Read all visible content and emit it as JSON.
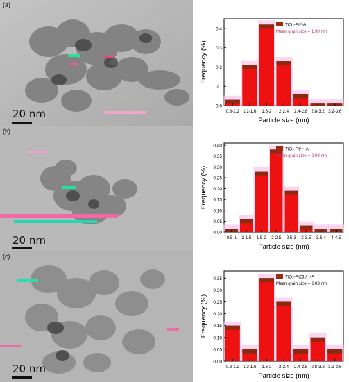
{
  "panels": [
    {
      "panel_label": "(a)",
      "scale_label": "20  nm"
    },
    {
      "panel_label": "(b)",
      "scale_label": "20  nm"
    },
    {
      "panel_label": "(c)",
      "scale_label": "20  nm"
    }
  ],
  "chart_data": [
    {
      "type": "bar",
      "legend": {
        "series": "TiO₂-Pt⁰-A",
        "mean_label": "Mean grain size = 1.90 nm",
        "placement": "top-right"
      },
      "xlabel": "Particle size (nm)",
      "ylabel": "Frequency (%)",
      "categories": [
        "0.8-1.2",
        "1.2-1.6",
        "1.6-2",
        "2-2.4",
        "2.4-2.8",
        "2.8-3.2",
        "3.2-3.6"
      ],
      "values": [
        0.03,
        0.21,
        0.42,
        0.23,
        0.06,
        0.01,
        0.01
      ],
      "ylim": [
        0,
        0.45
      ],
      "yticks": [
        0.0,
        0.1,
        0.2,
        0.3,
        0.4
      ],
      "ytick_labels": [
        "0.0",
        "0.1",
        "0.2",
        "0.3",
        "0.4"
      ]
    },
    {
      "type": "bar",
      "legend": {
        "series": "TiO₂-Pt⁴⁺-A",
        "mean_label": "Mean grain size = 2.09 nm",
        "placement": "top-right"
      },
      "xlabel": "Particle size (nm)",
      "ylabel": "Frequency (%)",
      "categories": [
        "0.5-1",
        "1-1.5",
        "1.5-2",
        "2-2.5",
        "2.5-3",
        "3-3.5",
        "3.5-4",
        "4-4.5"
      ],
      "values": [
        0.015,
        0.06,
        0.28,
        0.38,
        0.19,
        0.03,
        0.015,
        0.015
      ],
      "ylim": [
        0,
        0.41
      ],
      "yticks": [
        0.0,
        0.05,
        0.1,
        0.15,
        0.2,
        0.25,
        0.3,
        0.35,
        0.4
      ],
      "ytick_labels": [
        "0.00",
        "0.05",
        "0.10",
        "0.15",
        "0.20",
        "0.25",
        "0.30",
        "0.35",
        "0.40"
      ]
    },
    {
      "type": "bar",
      "legend": {
        "series": "TiO₂-PtCl₄²⁻-A",
        "mean_label": "Mean grain size = 2.03 nm",
        "placement": "top-right"
      },
      "xlabel": "Particle size (nm)",
      "ylabel": "Frequency (%)",
      "categories": [
        "0.8-1.2",
        "1.2-1.6",
        "1.6-2",
        "2-2.4",
        "2.4-2.8",
        "2.8-3.2",
        "3.2-3.6"
      ],
      "values": [
        0.15,
        0.05,
        0.35,
        0.25,
        0.05,
        0.1,
        0.05
      ],
      "ylim": [
        0,
        0.38
      ],
      "yticks": [
        0.0,
        0.05,
        0.1,
        0.15,
        0.2,
        0.25,
        0.3,
        0.35
      ],
      "ytick_labels": [
        "0.00",
        "0.05",
        "0.10",
        "0.15",
        "0.20",
        "0.25",
        "0.30",
        "0.35"
      ]
    }
  ],
  "colors": {
    "bar_fill": "#ee1111",
    "bar_top": "#8b2a10",
    "bar_glow": "#f7c6ee",
    "legend_swatch": "#9a2a12",
    "mean_text": "#b0305a"
  }
}
